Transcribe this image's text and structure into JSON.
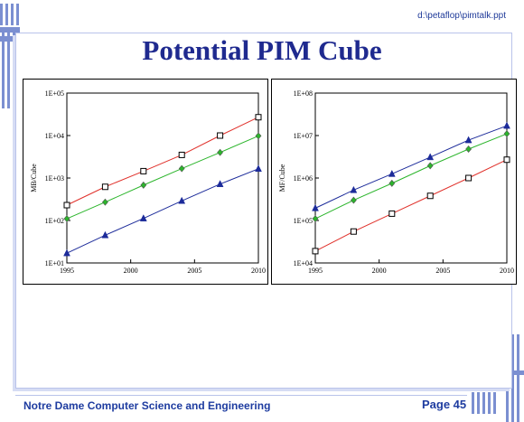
{
  "header": {
    "path": "d:\\petaflop\\pimtalk.ppt",
    "title": "Potential PIM Cube"
  },
  "footer": {
    "left": "Notre Dame Computer Science and Engineering",
    "right": "Page 45"
  },
  "colors": {
    "title": "#1f2a8f",
    "footer": "#1e3ca0",
    "red": "#e0302a",
    "green": "#2bb52b",
    "blue": "#1c2b9a",
    "decor": "#7b8fd1"
  },
  "chart_data": [
    {
      "type": "line",
      "ylabel": "MB/Cube",
      "xlabel": "",
      "x": [
        1995,
        1998,
        2001,
        2004,
        2007,
        2010
      ],
      "xticks": [
        "1995",
        "2000",
        "2005",
        "2010"
      ],
      "yticks": [
        "1E+01",
        "1E+02",
        "1E+03",
        "1E+04",
        "1E+05"
      ],
      "ylog": true,
      "ylim": [
        10,
        100000
      ],
      "xlim": [
        1995,
        2010
      ],
      "grid": false,
      "series": [
        {
          "color": "#e0302a",
          "marker": "square",
          "values": [
            230,
            620,
            1450,
            3500,
            10000,
            27000
          ]
        },
        {
          "color": "#2bb52b",
          "marker": "diamond",
          "values": [
            110,
            270,
            680,
            1670,
            4000,
            9800
          ]
        },
        {
          "color": "#1c2b9a",
          "marker": "triangle",
          "values": [
            17,
            45,
            112,
            290,
            720,
            1650
          ]
        }
      ]
    },
    {
      "type": "line",
      "ylabel": "MF/Cube",
      "xlabel": "",
      "x": [
        1995,
        1998,
        2001,
        2004,
        2007,
        2010
      ],
      "xticks": [
        "1995",
        "2000",
        "2005",
        "2010"
      ],
      "yticks": [
        "1E+04",
        "1E+05",
        "1E+06",
        "1E+07",
        "1E+08"
      ],
      "ylog": true,
      "ylim": [
        10000,
        100000000
      ],
      "xlim": [
        1995,
        2010
      ],
      "grid": false,
      "series": [
        {
          "color": "#1c2b9a",
          "marker": "triangle",
          "values": [
            195000,
            520000,
            1250000,
            3100000,
            7800000,
            17000000
          ]
        },
        {
          "color": "#2bb52b",
          "marker": "diamond",
          "values": [
            110000,
            300000,
            750000,
            1950000,
            4800000,
            11000000
          ]
        },
        {
          "color": "#e0302a",
          "marker": "square",
          "values": [
            19000,
            55000,
            145000,
            380000,
            1000000,
            2700000
          ]
        }
      ]
    }
  ]
}
